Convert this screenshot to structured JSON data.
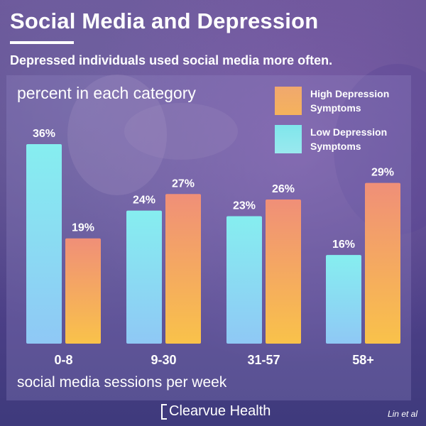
{
  "header": {
    "title": "Social Media and Depression",
    "subtitle": "Depressed individuals used social media more often."
  },
  "legend": {
    "high_label": "High Depression Symptoms",
    "low_label": "Low Depression Symptoms"
  },
  "footer": {
    "brand": "Clearvue Health",
    "source": "Lin et al"
  },
  "colors": {
    "high_top": "#f08f78",
    "high_bottom": "#f9c24a",
    "low_top": "#86eef0",
    "low_bottom": "#8fc8f5",
    "text": "#ffffff"
  },
  "chart_data": {
    "type": "bar",
    "ylabel": "percent in each category",
    "xlabel": "social media sessions per week",
    "categories": [
      "0-8",
      "9-30",
      "31-57",
      "58+"
    ],
    "series": [
      {
        "name": "Low Depression Symptoms",
        "values": [
          36,
          24,
          23,
          16
        ],
        "labels": [
          "36%",
          "24%",
          "23%",
          "16%"
        ]
      },
      {
        "name": "High Depression Symptoms",
        "values": [
          19,
          27,
          26,
          29
        ],
        "labels": [
          "19%",
          "27%",
          "26%",
          "29%"
        ]
      }
    ],
    "ylim": [
      0,
      36
    ],
    "grid": false,
    "legend_position": "top-right"
  }
}
